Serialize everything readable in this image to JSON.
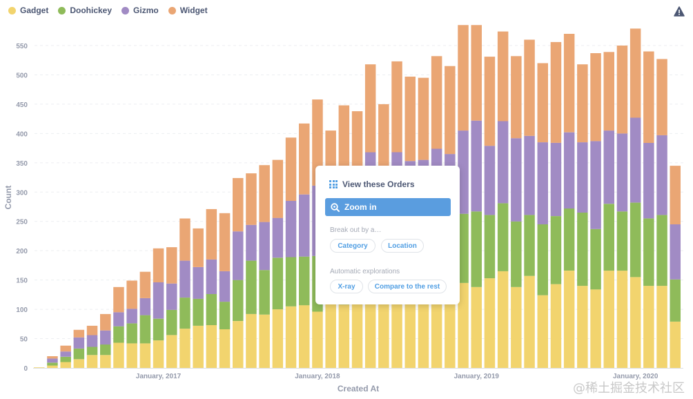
{
  "legend": [
    {
      "name": "Gadget",
      "color": "#f2d46e"
    },
    {
      "name": "Doohickey",
      "color": "#8fbb5a"
    },
    {
      "name": "Gizmo",
      "color": "#a18bc4"
    },
    {
      "name": "Widget",
      "color": "#eaa674"
    }
  ],
  "warning_icon": "warning-triangle-icon",
  "popup": {
    "view_label": "View these Orders",
    "view_icon": "grid-icon",
    "zoom_label": "Zoom in",
    "zoom_icon": "zoom-in-icon",
    "breakout_label": "Break out by a…",
    "breakout_options": [
      "Category",
      "Location"
    ],
    "auto_label": "Automatic explorations",
    "auto_options": [
      "X-ray",
      "Compare to the rest"
    ]
  },
  "watermark": "@稀土掘金技术社区",
  "chart_data": {
    "type": "bar",
    "stacked": true,
    "xlabel": "Created At",
    "ylabel": "Count",
    "ylim": [
      0,
      600
    ],
    "yticks": [
      0,
      50,
      100,
      150,
      200,
      250,
      300,
      350,
      400,
      450,
      500,
      550
    ],
    "grid": true,
    "legend_position": "top-left",
    "x_tick_labels": [
      {
        "label": "January, 2017",
        "index": 9
      },
      {
        "label": "January, 2018",
        "index": 21
      },
      {
        "label": "January, 2019",
        "index": 33
      },
      {
        "label": "January, 2020",
        "index": 45
      }
    ],
    "categories": [
      "2016-04",
      "2016-05",
      "2016-06",
      "2016-07",
      "2016-08",
      "2016-09",
      "2016-10",
      "2016-11",
      "2016-12",
      "2017-01",
      "2017-02",
      "2017-03",
      "2017-04",
      "2017-05",
      "2017-06",
      "2017-07",
      "2017-08",
      "2017-09",
      "2017-10",
      "2017-11",
      "2017-12",
      "2018-01",
      "2018-02",
      "2018-03",
      "2018-04",
      "2018-05",
      "2018-06",
      "2018-07",
      "2018-08",
      "2018-09",
      "2018-10",
      "2018-11",
      "2018-12",
      "2019-01",
      "2019-02",
      "2019-03",
      "2019-04",
      "2019-05",
      "2019-06",
      "2019-07",
      "2019-08",
      "2019-09",
      "2019-10",
      "2019-11",
      "2019-12",
      "2020-01",
      "2020-02",
      "2020-03",
      "2020-04"
    ],
    "series": [
      {
        "name": "Gadget",
        "color": "#f2d46e",
        "values": [
          1,
          4,
          10,
          15,
          22,
          22,
          43,
          42,
          42,
          47,
          56,
          67,
          72,
          73,
          66,
          80,
          92,
          91,
          100,
          105,
          107,
          96,
          110,
          108,
          112,
          125,
          120,
          130,
          128,
          130,
          132,
          130,
          145,
          138,
          153,
          165,
          138,
          157,
          124,
          143,
          166,
          140,
          134,
          166,
          166,
          155,
          140,
          140,
          79
        ]
      },
      {
        "name": "Doohickey",
        "color": "#8fbb5a",
        "values": [
          0,
          5,
          9,
          18,
          14,
          18,
          28,
          34,
          48,
          37,
          43,
          53,
          46,
          53,
          47,
          70,
          91,
          76,
          88,
          84,
          83,
          95,
          90,
          98,
          95,
          98,
          105,
          110,
          105,
          110,
          112,
          115,
          118,
          129,
          108,
          116,
          112,
          104,
          121,
          116,
          106,
          125,
          103,
          114,
          101,
          127,
          115,
          121,
          72
        ]
      },
      {
        "name": "Gizmo",
        "color": "#a18bc4",
        "values": [
          0,
          7,
          9,
          19,
          20,
          24,
          24,
          25,
          29,
          62,
          45,
          63,
          54,
          59,
          52,
          83,
          61,
          82,
          68,
          96,
          106,
          120,
          115,
          115,
          115,
          145,
          110,
          128,
          120,
          115,
          130,
          120,
          142,
          155,
          118,
          140,
          142,
          135,
          140,
          125,
          130,
          120,
          150,
          125,
          133,
          145,
          129,
          136,
          94
        ]
      },
      {
        "name": "Widget",
        "color": "#eaa674",
        "values": [
          0,
          4,
          10,
          13,
          16,
          28,
          43,
          48,
          45,
          58,
          62,
          72,
          66,
          86,
          99,
          91,
          88,
          97,
          99,
          108,
          121,
          147,
          90,
          127,
          116,
          150,
          115,
          155,
          144,
          140,
          158,
          150,
          180,
          163,
          152,
          153,
          140,
          164,
          135,
          172,
          168,
          133,
          150,
          134,
          150,
          152,
          156,
          130,
          100
        ]
      }
    ]
  }
}
